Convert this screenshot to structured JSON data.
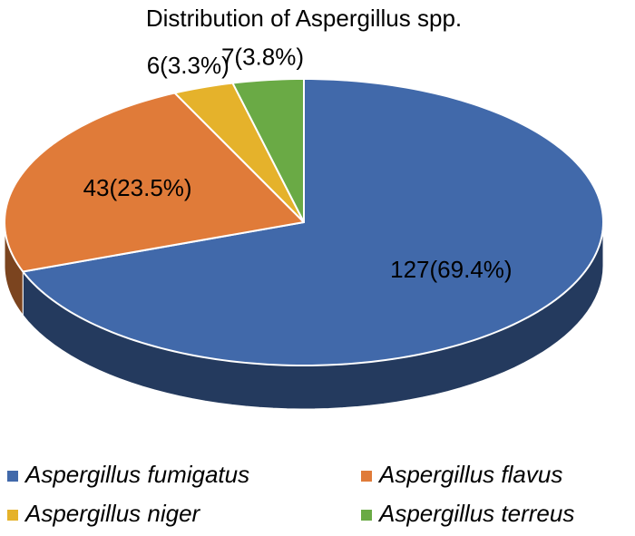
{
  "chart_data": {
    "type": "pie3d",
    "title": "Distribution of Aspergillus spp.",
    "categories": [
      "Aspergillus fumigatus",
      "Aspergillus flavus",
      "Aspergillus niger",
      "Aspergillus terreus"
    ],
    "values": [
      127,
      43,
      6,
      7
    ],
    "value_labels": [
      "127(69.4%)",
      "43(23.5%)",
      "6(3.3%)",
      "7(3.8%)"
    ],
    "colors": [
      "#4169aa",
      "#e07b39",
      "#e5b22b",
      "#6aaa45"
    ],
    "legend": "bottom"
  }
}
